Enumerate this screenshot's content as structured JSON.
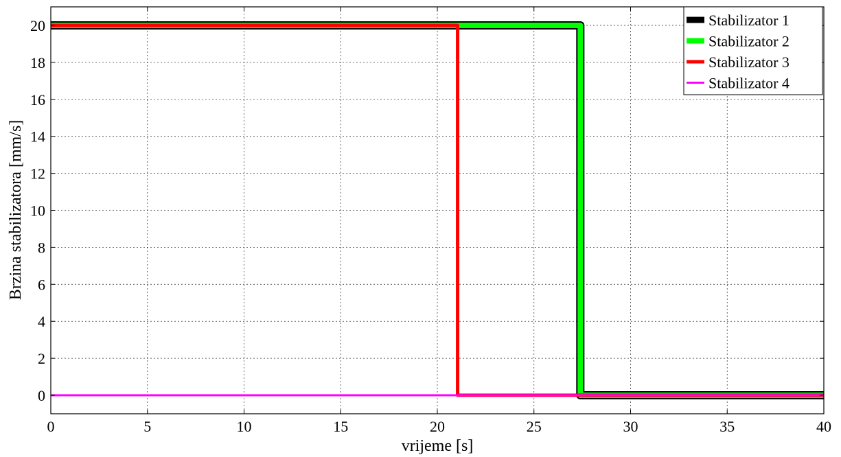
{
  "chart_data": {
    "type": "line",
    "xlabel": "vrijeme [s]",
    "ylabel": "Brzina stabilizatora [mm/s]",
    "xlim": [
      0,
      40
    ],
    "ylim": [
      -1,
      21
    ],
    "xticks": [
      0,
      5,
      10,
      15,
      20,
      25,
      30,
      35,
      40
    ],
    "yticks": [
      0,
      2,
      4,
      6,
      8,
      10,
      12,
      14,
      16,
      18,
      20
    ],
    "grid": true,
    "legend_position": "top-right",
    "series": [
      {
        "name": "Stabilizator 1",
        "color": "#000000",
        "points": [
          [
            0,
            20
          ],
          [
            27.4,
            20
          ],
          [
            27.4,
            0
          ],
          [
            40,
            0
          ]
        ]
      },
      {
        "name": "Stabilizator 2",
        "color": "#00ff00",
        "points": [
          [
            0,
            20
          ],
          [
            27.4,
            20
          ],
          [
            27.4,
            0
          ],
          [
            40,
            0
          ]
        ]
      },
      {
        "name": "Stabilizator 3",
        "color": "#ff0000",
        "points": [
          [
            0,
            20
          ],
          [
            21.05,
            20
          ],
          [
            21.05,
            0
          ],
          [
            40,
            0
          ]
        ]
      },
      {
        "name": "Stabilizator 4",
        "color": "#ff00ff",
        "points": [
          [
            0,
            0
          ],
          [
            40,
            0
          ]
        ]
      }
    ]
  }
}
